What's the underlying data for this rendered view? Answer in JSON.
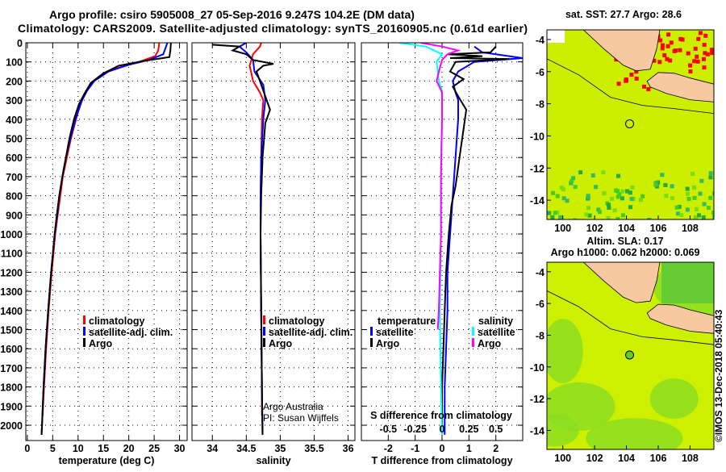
{
  "title": {
    "line1": "Argo profile: csiro 5905008_27 05-Sep-2016 9.247S 104.2E (DM data)",
    "line2": "Climatology: CARS2009. Satellite-adjusted climatology: synTS_20160905.nc (0.61d earlier)"
  },
  "colors": {
    "climatology": "#ff0000",
    "satellite": "#0000ff",
    "argo": "#000000",
    "sal_satellite": "#00ffff",
    "sal_argo": "#ff00ff",
    "land": "#f8c8a0",
    "sea": "#ccf000",
    "sst_hot": "#ff0000",
    "sst_cool": "#66dd22"
  },
  "watermark": "©IMOS 13-Dec-2018 05:40:43",
  "credit": {
    "line1": "Argo Australia",
    "line2": "PI: Susan Wijffels"
  },
  "chart_data": [
    {
      "type": "line",
      "id": "temperature",
      "xlabel": "temperature (deg C)",
      "ylabel": "",
      "xlim": [
        -0.3,
        31.5
      ],
      "ylim": [
        2080,
        0
      ],
      "xticks": [
        0,
        5,
        10,
        15,
        20,
        25,
        30
      ],
      "yticks": [
        0,
        100,
        200,
        300,
        400,
        500,
        600,
        700,
        800,
        900,
        1000,
        1100,
        1200,
        1300,
        1400,
        1500,
        1600,
        1700,
        1800,
        1900,
        2000
      ],
      "legend": [
        "climatology",
        "satellite-adj. clim.",
        "Argo"
      ],
      "legend_position": "lower-right",
      "series": [
        {
          "name": "climatology",
          "color": "#ff0000",
          "points": [
            [
              26.0,
              0
            ],
            [
              25.8,
              40
            ],
            [
              25.2,
              70
            ],
            [
              22,
              100
            ],
            [
              18,
              130
            ],
            [
              15,
              160
            ],
            [
              13,
              200
            ],
            [
              11.6,
              250
            ],
            [
              10.6,
              300
            ],
            [
              9.6,
              400
            ],
            [
              8.6,
              500
            ],
            [
              7.8,
              600
            ],
            [
              7.0,
              700
            ],
            [
              6.5,
              800
            ],
            [
              6.0,
              900
            ],
            [
              5.5,
              1000
            ],
            [
              4.8,
              1200
            ],
            [
              4.2,
              1400
            ],
            [
              3.7,
              1600
            ],
            [
              3.3,
              1800
            ],
            [
              3.0,
              1950
            ]
          ]
        },
        {
          "name": "satellite-adj. clim.",
          "color": "#0000ff",
          "points": [
            [
              27.6,
              0
            ],
            [
              27.2,
              30
            ],
            [
              26.8,
              60
            ],
            [
              24,
              90
            ],
            [
              20,
              115
            ],
            [
              16,
              150
            ],
            [
              13.2,
              200
            ],
            [
              11.8,
              250
            ],
            [
              10.8,
              300
            ],
            [
              9.5,
              400
            ],
            [
              8.5,
              500
            ],
            [
              7.6,
              600
            ],
            [
              6.9,
              700
            ],
            [
              6.3,
              800
            ],
            [
              5.9,
              900
            ],
            [
              5.4,
              1000
            ],
            [
              4.7,
              1200
            ],
            [
              4.1,
              1400
            ],
            [
              3.6,
              1600
            ],
            [
              3.2,
              1800
            ],
            [
              2.9,
              2000
            ],
            [
              2.8,
              2050
            ]
          ]
        },
        {
          "name": "Argo",
          "color": "#000000",
          "points": [
            [
              28.3,
              0
            ],
            [
              28.2,
              40
            ],
            [
              28.0,
              75
            ],
            [
              23,
              95
            ],
            [
              18,
              120
            ],
            [
              15,
              160
            ],
            [
              12.5,
              210
            ],
            [
              11.2,
              270
            ],
            [
              10.2,
              320
            ],
            [
              9.2,
              400
            ],
            [
              8.3,
              500
            ],
            [
              7.6,
              600
            ],
            [
              6.9,
              700
            ],
            [
              6.3,
              800
            ],
            [
              5.8,
              900
            ],
            [
              5.4,
              1000
            ],
            [
              4.7,
              1200
            ],
            [
              4.1,
              1400
            ],
            [
              3.6,
              1600
            ],
            [
              3.2,
              1800
            ],
            [
              2.9,
              2000
            ],
            [
              2.8,
              2050
            ]
          ]
        }
      ]
    },
    {
      "type": "line",
      "id": "salinity",
      "xlabel": "salinity",
      "xlim": [
        33.7,
        36.1
      ],
      "ylim": [
        2080,
        0
      ],
      "xticks": [
        34,
        34.5,
        35,
        35.5,
        36
      ],
      "legend": [
        "climatology",
        "satellite-adj. clim.",
        "Argo"
      ],
      "legend_position": "lower-right",
      "series": [
        {
          "name": "climatology",
          "color": "#ff0000",
          "points": [
            [
              34.72,
              0
            ],
            [
              34.7,
              20
            ],
            [
              34.6,
              60
            ],
            [
              34.55,
              120
            ],
            [
              34.6,
              200
            ],
            [
              34.7,
              260
            ],
            [
              34.75,
              300
            ],
            [
              34.73,
              400
            ],
            [
              34.72,
              600
            ],
            [
              34.71,
              800
            ],
            [
              34.71,
              1000
            ],
            [
              34.72,
              1400
            ],
            [
              34.73,
              1800
            ],
            [
              34.73,
              1950
            ]
          ]
        },
        {
          "name": "satellite-adj. clim.",
          "color": "#0000ff",
          "points": [
            [
              34.5,
              0
            ],
            [
              34.4,
              20
            ],
            [
              34.5,
              50
            ],
            [
              34.6,
              90
            ],
            [
              34.62,
              150
            ],
            [
              34.75,
              220
            ],
            [
              34.78,
              300
            ],
            [
              34.75,
              400
            ],
            [
              34.72,
              600
            ],
            [
              34.71,
              800
            ],
            [
              34.71,
              1000
            ],
            [
              34.72,
              1400
            ],
            [
              34.73,
              1800
            ],
            [
              34.74,
              2050
            ]
          ]
        },
        {
          "name": "Argo",
          "color": "#000000",
          "points": [
            [
              34.0,
              10
            ],
            [
              34.4,
              20
            ],
            [
              34.3,
              40
            ],
            [
              34.5,
              60
            ],
            [
              34.6,
              90
            ],
            [
              34.9,
              110
            ],
            [
              34.75,
              120
            ],
            [
              34.65,
              150
            ],
            [
              34.72,
              220
            ],
            [
              34.8,
              300
            ],
            [
              34.85,
              350
            ],
            [
              34.78,
              420
            ],
            [
              34.74,
              600
            ],
            [
              34.72,
              800
            ],
            [
              34.71,
              1000
            ],
            [
              34.72,
              1400
            ],
            [
              34.73,
              1800
            ],
            [
              34.74,
              2050
            ]
          ]
        }
      ]
    },
    {
      "type": "line",
      "id": "difference",
      "xlabel": "T difference from climatology",
      "x2label": "S difference from climatology",
      "xlim": [
        -3,
        3
      ],
      "x2lim": [
        -0.75,
        0.75
      ],
      "ylim": [
        2080,
        0
      ],
      "xticks": [
        -2,
        -1,
        0,
        1,
        2
      ],
      "x2ticks": [
        -0.5,
        -0.25,
        0,
        0.25,
        0.5
      ],
      "legend_temperature_title": "temperature",
      "legend_salinity_title": "salinity",
      "legend": [
        "satellite",
        "Argo",
        "satellite",
        "Argo"
      ],
      "legend_position": "lower",
      "series": [
        {
          "name": "temperature satellite",
          "color": "#0000ff",
          "axis": "T",
          "points": [
            [
              1.2,
              20
            ],
            [
              1.5,
              50
            ],
            [
              2.5,
              70
            ],
            [
              3.0,
              80
            ],
            [
              1.2,
              100
            ],
            [
              0.6,
              150
            ],
            [
              0.4,
              200
            ],
            [
              0.5,
              260
            ],
            [
              0.6,
              300
            ],
            [
              0.6,
              400
            ],
            [
              0.55,
              500
            ],
            [
              0.5,
              600
            ],
            [
              0.45,
              700
            ],
            [
              0.4,
              800
            ],
            [
              0.35,
              900
            ],
            [
              0.3,
              1000
            ],
            [
              0.2,
              1200
            ],
            [
              0.2,
              1400
            ],
            [
              0.15,
              1600
            ],
            [
              0.1,
              1800
            ],
            [
              0.1,
              2050
            ]
          ]
        },
        {
          "name": "temperature Argo",
          "color": "#000000",
          "axis": "T",
          "points": [
            [
              2.0,
              20
            ],
            [
              1.8,
              50
            ],
            [
              0.2,
              60
            ],
            [
              1.5,
              70
            ],
            [
              0.3,
              80
            ],
            [
              2.5,
              85
            ],
            [
              0.5,
              100
            ],
            [
              0.3,
              150
            ],
            [
              0.8,
              190
            ],
            [
              0.4,
              230
            ],
            [
              0.6,
              280
            ],
            [
              0.9,
              350
            ],
            [
              0.8,
              450
            ],
            [
              0.7,
              550
            ],
            [
              0.6,
              650
            ],
            [
              0.5,
              750
            ],
            [
              0.35,
              850
            ],
            [
              0.25,
              1000
            ],
            [
              0.15,
              1200
            ],
            [
              0.1,
              1400
            ],
            [
              0.05,
              1600
            ],
            [
              0.0,
              1800
            ],
            [
              0.0,
              2000
            ]
          ]
        },
        {
          "name": "salinity satellite",
          "color": "#00ffff",
          "axis": "S",
          "points": [
            [
              -0.4,
              0
            ],
            [
              -0.15,
              20
            ],
            [
              0,
              60
            ],
            [
              -0.05,
              100
            ],
            [
              -0.03,
              200
            ],
            [
              0.0,
              250
            ],
            [
              0.0,
              400
            ],
            [
              -0.01,
              600
            ],
            [
              -0.01,
              1000
            ],
            [
              -0.02,
              1400
            ],
            [
              -0.01,
              1800
            ],
            [
              0.0,
              2050
            ]
          ]
        },
        {
          "name": "salinity Argo",
          "color": "#ff00ff",
          "axis": "S",
          "points": [
            [
              -0.2,
              0
            ],
            [
              0.0,
              20
            ],
            [
              0.15,
              40
            ],
            [
              0.05,
              60
            ],
            [
              0.0,
              90
            ],
            [
              -0.02,
              130
            ],
            [
              -0.05,
              200
            ],
            [
              0.0,
              260
            ],
            [
              0.0,
              400
            ],
            [
              -0.01,
              700
            ],
            [
              -0.01,
              1000
            ],
            [
              -0.02,
              1200
            ],
            [
              -0.03,
              1400
            ],
            [
              -0.04,
              1500
            ]
          ]
        }
      ]
    },
    {
      "type": "heatmap",
      "id": "sst-map",
      "title": "sat. SST: 27.7 Argo: 28.6",
      "xlim": [
        99,
        109.5
      ],
      "ylim": [
        -15.2,
        -3.4
      ],
      "xticks": [
        100,
        102,
        104,
        106,
        108
      ],
      "yticks": [
        -4,
        -6,
        -8,
        -10,
        -12,
        -14
      ],
      "profile_location": [
        104.2,
        -9.247
      ]
    },
    {
      "type": "heatmap",
      "id": "sla-map",
      "title": "Altim. SLA: 0.17",
      "subtitle": "Argo h1000: 0.062 h2000: 0.069",
      "xlim": [
        99,
        109.5
      ],
      "ylim": [
        -15.2,
        -3.4
      ],
      "xticks": [
        100,
        102,
        104,
        106,
        108
      ],
      "yticks": [
        -4,
        -6,
        -8,
        -10,
        -12,
        -14
      ],
      "profile_location": [
        104.2,
        -9.247
      ]
    }
  ]
}
